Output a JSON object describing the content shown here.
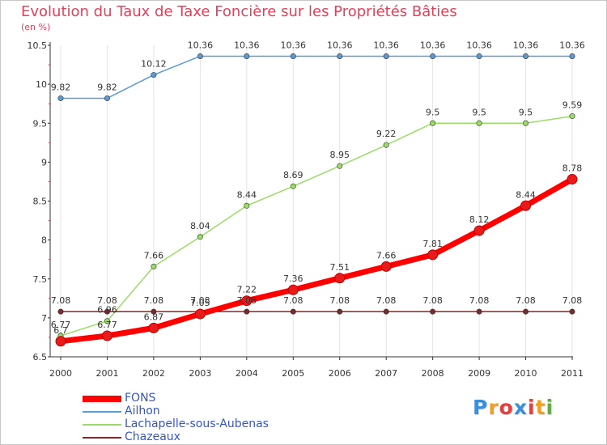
{
  "chart_data": {
    "type": "line",
    "title": "Evolution du Taux de Taxe Foncière sur les Propriétés Bâties",
    "subtitle": "(en %)",
    "xlabel": "",
    "ylabel": "",
    "categories": [
      "2000",
      "2001",
      "2002",
      "2003",
      "2004",
      "2005",
      "2006",
      "2007",
      "2008",
      "2009",
      "2010",
      "2011"
    ],
    "ylim": [
      6.5,
      10.5
    ],
    "yticks": [
      "6.5",
      "7",
      "7.5",
      "8",
      "8.5",
      "9",
      "9.5",
      "10",
      "10.5"
    ],
    "grid": "vertical",
    "legend_position": "bottom-left",
    "series": [
      {
        "name": "FONS",
        "color": "#ff0000",
        "values": [
          6.7,
          6.77,
          6.87,
          7.05,
          7.22,
          7.36,
          7.51,
          7.66,
          7.81,
          8.12,
          8.44,
          8.78
        ],
        "labels": [
          "6.7",
          "6.77",
          "6.87",
          "7.05",
          "7.22",
          "7.36",
          "7.51",
          "7.66",
          "7.81",
          "8.12",
          "8.44",
          "8.78"
        ]
      },
      {
        "name": "Ailhon",
        "color": "#5b9bd5",
        "values": [
          9.82,
          9.82,
          10.12,
          10.36,
          10.36,
          10.36,
          10.36,
          10.36,
          10.36,
          10.36,
          10.36,
          10.36
        ],
        "labels": [
          "9.82",
          "9.82",
          "10.12",
          "10.36",
          "10.36",
          "10.36",
          "10.36",
          "10.36",
          "10.36",
          "10.36",
          "10.36",
          "10.36"
        ]
      },
      {
        "name": "Lachapelle-sous-Aubenas",
        "color": "#99dd66",
        "values": [
          6.77,
          6.96,
          7.66,
          8.04,
          8.44,
          8.69,
          8.95,
          9.22,
          9.5,
          9.5,
          9.5,
          9.59
        ],
        "labels": [
          "6.77",
          "6.96",
          "7.66",
          "8.04",
          "8.44",
          "8.69",
          "8.95",
          "9.22",
          "9.5",
          "9.5",
          "9.5",
          "9.59"
        ]
      },
      {
        "name": "Chazeaux",
        "color": "#7a2a2a",
        "values": [
          7.08,
          7.08,
          7.08,
          7.08,
          7.08,
          7.08,
          7.08,
          7.08,
          7.08,
          7.08,
          7.08,
          7.08
        ],
        "labels": [
          "7.08",
          "7.08",
          "7.08",
          "7.08",
          "7.08",
          "7.08",
          "7.08",
          "7.08",
          "7.08",
          "7.08",
          "7.08",
          "7.08"
        ]
      }
    ]
  },
  "logo": {
    "text": "Proxiti",
    "letter_colors": [
      "#3a8fd8",
      "#f0a020",
      "#e04040",
      "#3a8fd8",
      "#e04040",
      "#f0a020",
      "#60b040"
    ]
  }
}
